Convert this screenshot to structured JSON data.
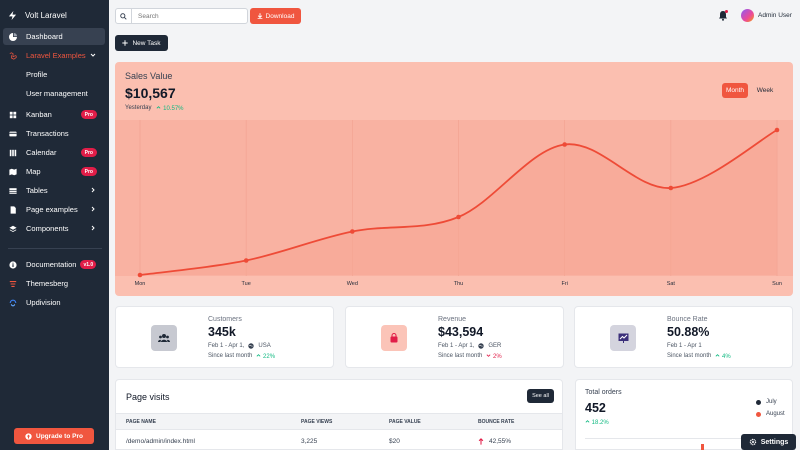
{
  "brand": {
    "name": "Volt Laravel"
  },
  "sidebar": {
    "items": [
      {
        "label": "Dashboard"
      },
      {
        "label": "Laravel Examples"
      },
      {
        "label": "Profile"
      },
      {
        "label": "User management"
      },
      {
        "label": "Kanban",
        "badge": "Pro"
      },
      {
        "label": "Transactions"
      },
      {
        "label": "Calendar",
        "badge": "Pro"
      },
      {
        "label": "Map",
        "badge": "Pro"
      },
      {
        "label": "Tables"
      },
      {
        "label": "Page examples"
      },
      {
        "label": "Components"
      },
      {
        "label": "Documentation",
        "badge": "v1.0"
      },
      {
        "label": "Themesberg"
      },
      {
        "label": "Updivision"
      }
    ],
    "upgrade_label": "Upgrade to Pro"
  },
  "topbar": {
    "search_placeholder": "Search",
    "download_label": "Download",
    "user_name": "Admin User"
  },
  "new_task_label": "New Task",
  "sales": {
    "title": "Sales Value",
    "value": "$10,567",
    "period": "Yesterday",
    "change": "10.57%",
    "tabs": [
      "Month",
      "Week"
    ]
  },
  "chart_data": {
    "type": "line",
    "categories": [
      "Mon",
      "Tue",
      "Wed",
      "Thu",
      "Fri",
      "Sat",
      "Sun"
    ],
    "values": [
      0,
      10,
      30,
      40,
      90,
      60,
      100
    ],
    "ylim": [
      0,
      100
    ],
    "grid": true,
    "title": "Sales Value",
    "xlabel": "",
    "ylabel": ""
  },
  "stats": [
    {
      "label": "Customers",
      "value": "345k",
      "range": "Feb 1 - Apr 1,",
      "region": "USA",
      "since": "Since last month",
      "change": "22%",
      "direction": "up"
    },
    {
      "label": "Revenue",
      "value": "$43,594",
      "range": "Feb 1 - Apr 1,",
      "region": "GER",
      "since": "Since last month",
      "change": "2%",
      "direction": "down"
    },
    {
      "label": "Bounce Rate",
      "value": "50.88%",
      "range": "Feb 1 - Apr 1",
      "region": "",
      "since": "Since last month",
      "change": "4%",
      "direction": "up"
    }
  ],
  "visits": {
    "title": "Page visits",
    "see_all": "See all",
    "columns": [
      "PAGE NAME",
      "PAGE VIEWS",
      "PAGE VALUE",
      "BOUNCE RATE"
    ],
    "rows": [
      {
        "page": "/demo/admin/index.html",
        "views": "3,225",
        "value": "$20",
        "bounce": "42,55%"
      }
    ]
  },
  "orders": {
    "title": "Total orders",
    "value": "452",
    "change": "18.2%",
    "legend": [
      {
        "name": "July",
        "color": "#1f2937"
      },
      {
        "name": "August",
        "color": "#f0563f"
      }
    ]
  },
  "settings_label": "Settings",
  "colors": {
    "accent": "#f0563f",
    "sidebar": "#1f2937",
    "success": "#10b981",
    "danger": "#e11d48"
  }
}
